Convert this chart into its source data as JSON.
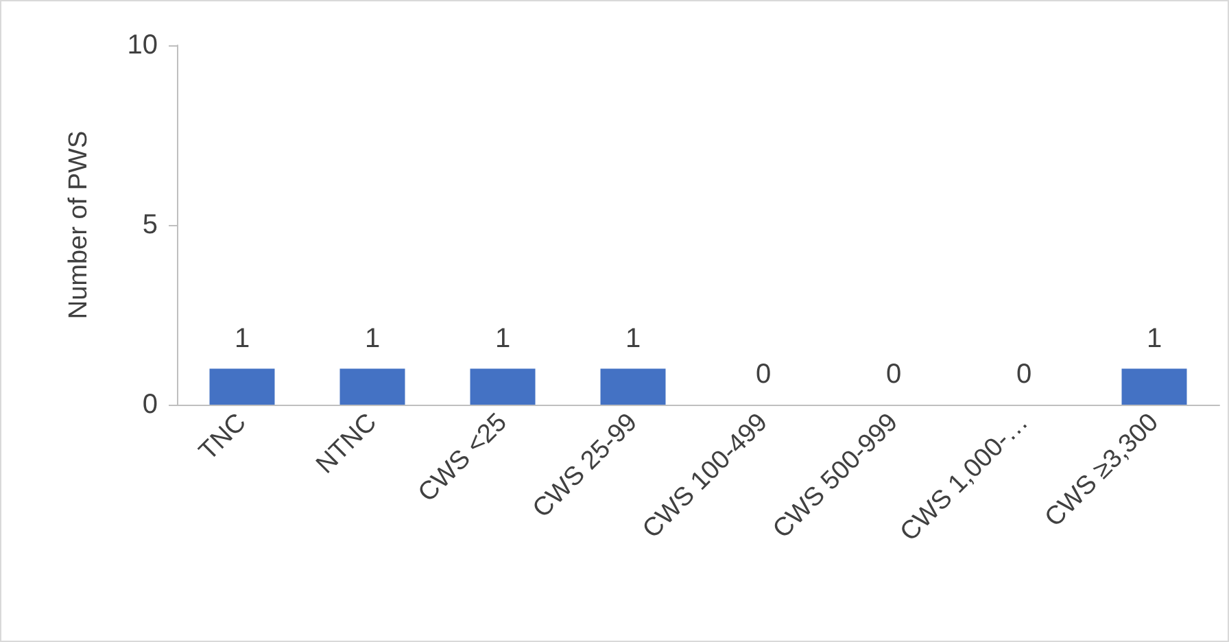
{
  "chart_data": {
    "type": "bar",
    "ylabel": "Number of PWS",
    "categories": [
      "TNC",
      "NTNC",
      "CWS <25",
      "CWS 25-99",
      "CWS 100-499",
      "CWS 500-999",
      "CWS 1,000-…",
      "CWS ≥3,300"
    ],
    "values": [
      1,
      1,
      1,
      1,
      0,
      0,
      0,
      1
    ],
    "color": "#4472c4",
    "ylim": [
      0,
      10
    ],
    "yticks": [
      0,
      5,
      10
    ],
    "grid": false,
    "data_labels": true
  }
}
